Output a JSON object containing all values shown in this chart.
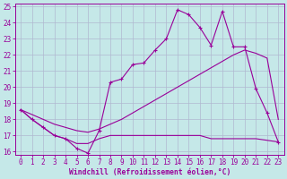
{
  "xlabel": "Windchill (Refroidissement éolien,°C)",
  "xlim": [
    -0.5,
    23.5
  ],
  "ylim": [
    15.8,
    25.2
  ],
  "yticks": [
    16,
    17,
    18,
    19,
    20,
    21,
    22,
    23,
    24,
    25
  ],
  "xticks": [
    0,
    1,
    2,
    3,
    4,
    5,
    6,
    7,
    8,
    9,
    10,
    11,
    12,
    13,
    14,
    15,
    16,
    17,
    18,
    19,
    20,
    21,
    22,
    23
  ],
  "bg_color": "#c5e8e8",
  "grid_color": "#b0b8d0",
  "line_color": "#990099",
  "line1_x": [
    0,
    1,
    2,
    3,
    4,
    5,
    6,
    7,
    8,
    9,
    10,
    11,
    12,
    13,
    14,
    15,
    16,
    17,
    18,
    19,
    20,
    21,
    22,
    23
  ],
  "line1_y": [
    18.6,
    18.0,
    17.5,
    17.0,
    16.8,
    16.2,
    15.9,
    17.3,
    20.3,
    20.5,
    21.4,
    21.5,
    22.3,
    23.0,
    24.8,
    24.5,
    23.7,
    22.6,
    24.7,
    22.5,
    22.5,
    19.9,
    18.4,
    16.6
  ],
  "line2_x": [
    0,
    1,
    2,
    3,
    4,
    5,
    6,
    7,
    8,
    9,
    10,
    11,
    12,
    13,
    14,
    15,
    16,
    17,
    18,
    19,
    20,
    21,
    22,
    23
  ],
  "line2_y": [
    18.6,
    18.3,
    18.0,
    17.7,
    17.5,
    17.3,
    17.2,
    17.4,
    17.7,
    18.0,
    18.4,
    18.8,
    19.2,
    19.6,
    20.0,
    20.4,
    20.8,
    21.2,
    21.6,
    22.0,
    22.3,
    22.1,
    21.8,
    18.0
  ],
  "line3_x": [
    0,
    1,
    2,
    3,
    4,
    5,
    6,
    7,
    8,
    9,
    10,
    11,
    12,
    13,
    14,
    15,
    16,
    17,
    18,
    19,
    20,
    21,
    22,
    23
  ],
  "line3_y": [
    18.6,
    18.0,
    17.5,
    17.0,
    16.8,
    16.5,
    16.5,
    16.8,
    17.0,
    17.0,
    17.0,
    17.0,
    17.0,
    17.0,
    17.0,
    17.0,
    17.0,
    16.8,
    16.8,
    16.8,
    16.8,
    16.8,
    16.7,
    16.6
  ]
}
